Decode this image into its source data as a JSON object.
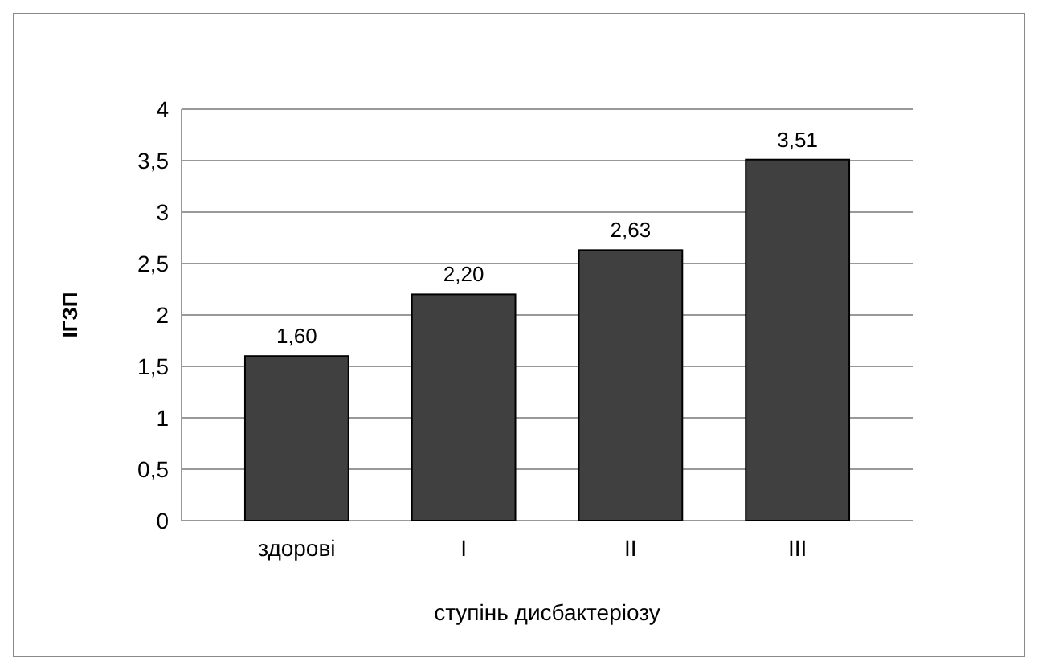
{
  "chart_data": {
    "type": "bar",
    "xlabel": "ступінь дисбактеріозу",
    "ylabel": "ІГЗП",
    "categories": [
      "здорові",
      "I",
      "II",
      "III"
    ],
    "values": [
      1.6,
      2.2,
      2.63,
      3.51
    ],
    "value_labels": [
      "1,60",
      "2,20",
      "2,63",
      "3,51"
    ],
    "color": "#404040",
    "ylim": [
      0,
      4
    ],
    "yticks": [
      0,
      {
        "value": 0.5,
        "label": "0,5"
      },
      1,
      {
        "value": 1.5,
        "label": "1,5"
      },
      2,
      {
        "value": 2.5,
        "label": "2,5"
      },
      3,
      {
        "value": 3.5,
        "label": "3,5"
      },
      4
    ],
    "grid": true
  }
}
